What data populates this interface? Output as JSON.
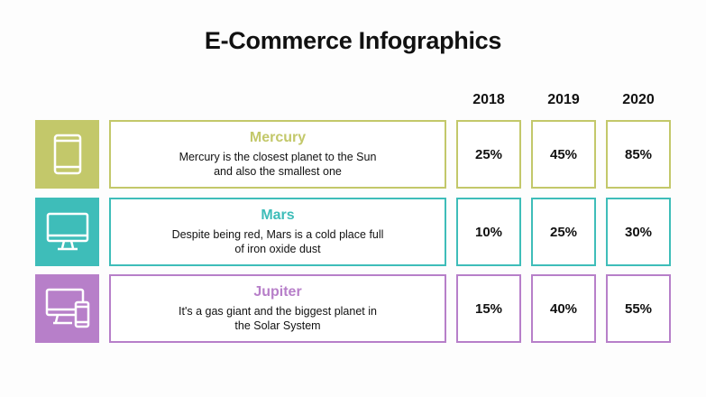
{
  "title": "E-Commerce Infographics",
  "years": [
    "2018",
    "2019",
    "2020"
  ],
  "rows": [
    {
      "name": "Mercury",
      "description": "Mercury is the closest planet to the Sun and also the smallest one",
      "values": [
        "25%",
        "45%",
        "85%"
      ],
      "color": "#c3c86a",
      "icon": "tablet-icon"
    },
    {
      "name": "Mars",
      "description": "Despite being red, Mars is a cold place full of iron oxide dust",
      "values": [
        "10%",
        "25%",
        "30%"
      ],
      "color": "#3ebdb9",
      "icon": "monitor-icon"
    },
    {
      "name": "Jupiter",
      "description": "It's a gas giant and the biggest planet in the Solar System",
      "values": [
        "15%",
        "40%",
        "55%"
      ],
      "color": "#b77fc9",
      "icon": "devices-icon"
    }
  ]
}
